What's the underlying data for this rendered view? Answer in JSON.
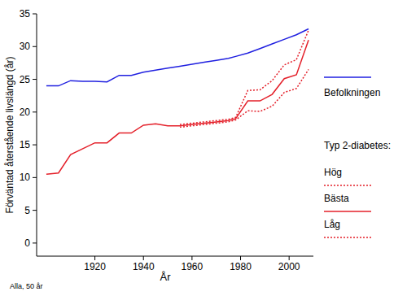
{
  "chart_data": {
    "type": "line",
    "x_label": "År",
    "y_label": "Förväntad återstående livslängd (år)",
    "note": "Alla, 50 år",
    "legend_title": "Typ 2-diabetes:",
    "legend": "right",
    "grid": false,
    "x": [
      1900,
      1905,
      1910,
      1915,
      1920,
      1925,
      1930,
      1935,
      1940,
      1945,
      1950,
      1955,
      1960,
      1965,
      1970,
      1975,
      1978,
      1983,
      1988,
      1993,
      1998,
      2003,
      2008
    ],
    "xlim": [
      1896,
      2010
    ],
    "xticks": [
      1920,
      1940,
      1960,
      1980,
      2000
    ],
    "ylim": [
      -2,
      35
    ],
    "yticks": [
      0,
      5,
      10,
      15,
      20,
      25,
      30,
      35
    ],
    "series": [
      {
        "name": "Befolkningen",
        "color": "#2020e0",
        "line_style": "solid",
        "values": [
          24.0,
          24.0,
          24.8,
          24.7,
          24.7,
          24.6,
          25.6,
          25.6,
          26.1,
          26.4,
          26.7,
          27.0,
          27.3,
          27.6,
          27.9,
          28.2,
          28.5,
          29.0,
          29.7,
          30.4,
          31.1,
          31.8,
          32.7
        ]
      },
      {
        "name": "Hög",
        "color": "#e4202a",
        "line_style": "dotted",
        "values": [
          null,
          null,
          null,
          null,
          null,
          null,
          null,
          null,
          null,
          null,
          null,
          18.1,
          18.3,
          18.5,
          18.7,
          18.9,
          19.2,
          23.3,
          23.4,
          24.8,
          27.2,
          28.0,
          32.5
        ]
      },
      {
        "name": "Bästa",
        "color": "#e4202a",
        "line_style": "solid",
        "values": [
          10.5,
          10.7,
          13.5,
          14.4,
          15.3,
          15.3,
          16.8,
          16.8,
          18.0,
          18.2,
          17.9,
          17.9,
          18.1,
          18.3,
          18.5,
          18.7,
          19.0,
          21.7,
          21.7,
          22.7,
          25.1,
          25.7,
          31.0
        ]
      },
      {
        "name": "Låg",
        "color": "#e4202a",
        "line_style": "dotted",
        "values": [
          null,
          null,
          null,
          null,
          null,
          null,
          null,
          null,
          null,
          null,
          null,
          17.7,
          17.9,
          18.1,
          18.3,
          18.5,
          18.8,
          20.2,
          20.1,
          20.9,
          23.0,
          23.6,
          26.5
        ]
      }
    ]
  }
}
